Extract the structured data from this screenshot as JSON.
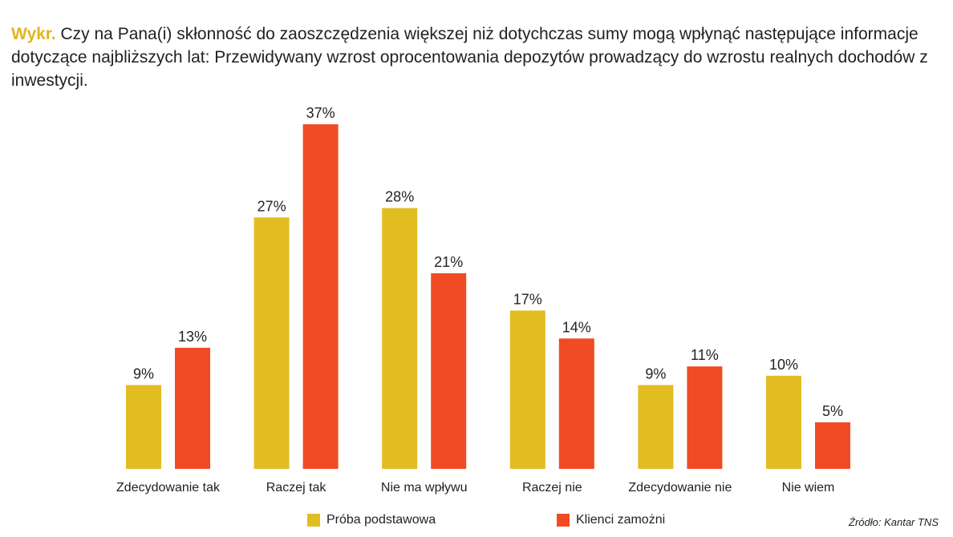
{
  "title": {
    "prefix": "Wykr.",
    "text": "Czy na Pana(i) skłonność do zaoszczędzenia większej niż dotychczas sumy mogą wpłynąć następujące informacje dotyczące najbliższych lat: Przewidywany wzrost oprocentowania depozytów prowadzący do wzrostu realnych dochodów z inwestycji."
  },
  "source": "Źródło: Kantar TNS",
  "colors": {
    "series1": "#e2bd22",
    "series2": "#f04b24"
  },
  "chart_data": {
    "type": "bar",
    "categories": [
      "Zdecydowanie tak",
      "Raczej tak",
      "Nie ma wpływu",
      "Raczej nie",
      "Zdecydowanie nie",
      "Nie wiem"
    ],
    "series": [
      {
        "name": "Próba podstawowa",
        "values": [
          9,
          27,
          28,
          17,
          9,
          10
        ],
        "labels": [
          "9%",
          "27%",
          "28%",
          "17%",
          "9%",
          "10%"
        ]
      },
      {
        "name": "Klienci zamożni",
        "values": [
          13,
          37,
          21,
          14,
          11,
          5
        ],
        "labels": [
          "13%",
          "37%",
          "21%",
          "14%",
          "11%",
          "5%"
        ]
      }
    ],
    "ylim": [
      0,
      40
    ],
    "grid": false,
    "legend": "bottom"
  }
}
